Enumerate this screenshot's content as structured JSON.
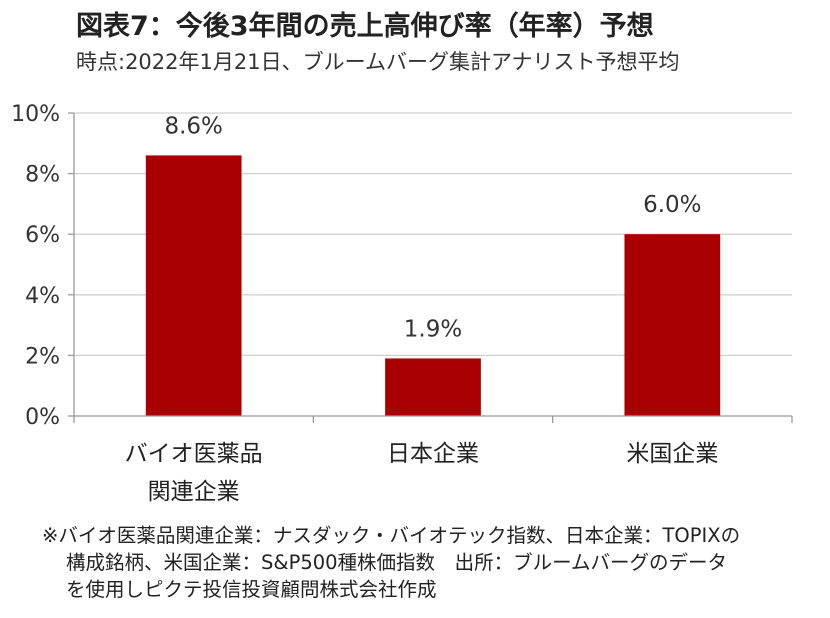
{
  "header": {
    "title": "図表7：今後3年間の売上高伸び率（年率）予想",
    "subtitle": "時点:2022年1月21日、ブルームバーグ集計アナリスト予想平均"
  },
  "chart_data": {
    "type": "bar",
    "categories": [
      [
        "バイオ医薬品",
        "関連企業"
      ],
      [
        "日本企業"
      ],
      [
        "米国企業"
      ]
    ],
    "values": [
      8.6,
      1.9,
      6.0
    ],
    "data_labels": [
      "8.6%",
      "1.9%",
      "6.0%"
    ],
    "yticks": [
      "0%",
      "2%",
      "4%",
      "6%",
      "8%",
      "10%"
    ],
    "ylim": [
      0,
      10
    ],
    "bar_color": "#a80000",
    "grid": true,
    "legend": "none"
  },
  "footnote": {
    "lines": [
      "※バイオ医薬品関連企業：ナスダック・バイオテック指数、日本企業：TOPIXの",
      "構成銘柄、米国企業：S&P500種株価指数　出所：ブルームバーグのデータ",
      "を使用しピクテ投信投資顧問株式会社作成"
    ]
  }
}
